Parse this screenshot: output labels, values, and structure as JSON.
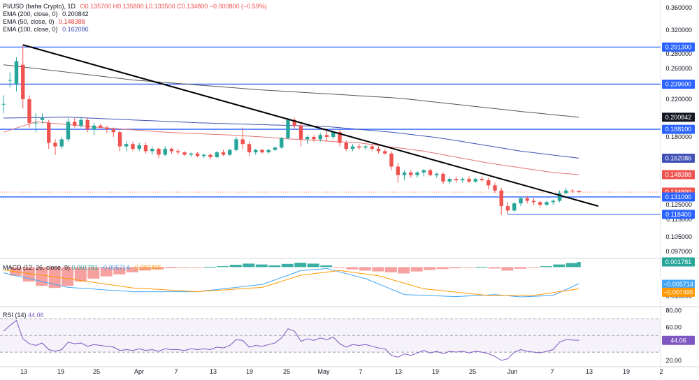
{
  "legend": {
    "symbol": "PI/USD (baha Crypto), 1D",
    "ohlc": "O0.135700 H0.135800 L0.133500 C0.134800 −0.000800 (−0.59%)",
    "ema200_label": "EMA (200, close, 0)",
    "ema200_value": "0.200842",
    "ema50_label": "EMA (50, close, 0)",
    "ema50_value": "0.148388",
    "ema100_label": "EMA (100, close, 0)",
    "ema100_value": "0.162086"
  },
  "macd_legend": {
    "label": "MACD (12, 26, close, 9)",
    "v1": "0.001781",
    "v2": "−0.005714",
    "v3": "−0.007495"
  },
  "rsi_legend": {
    "label": "RSI (14)",
    "value": "44.06"
  },
  "colors": {
    "up": "#26a69a",
    "down": "#ef5350",
    "ema200": "#555555",
    "ema50": "#e57373",
    "ema100": "#3f51b5",
    "level": "#2962ff",
    "trendline": "#000000",
    "macd_line": "#42a5f5",
    "signal_line": "#ff9800",
    "rsi": "#7e57c2"
  },
  "chart_data": [
    {
      "type": "candlestick",
      "title": "PI/USD (baha Crypto), 1D",
      "x_tick_labels": [
        "13",
        "19",
        "25",
        "Apr",
        "7",
        "13",
        "19",
        "25",
        "May",
        "7",
        "13",
        "19",
        "25",
        "Jun",
        "7",
        "13",
        "19",
        "2"
      ],
      "y_tick_labels": [
        "0.360000",
        "0.320000",
        "0.280000",
        "0.260000",
        "0.220000",
        "0.180000",
        "0.150000",
        "0.125000",
        "0.115000",
        "0.105000",
        "0.097000"
      ],
      "ylim": [
        0.09,
        0.37
      ],
      "ohlc": [
        [
          0.215,
          0.225,
          0.205,
          0.215
        ],
        [
          0.245,
          0.255,
          0.235,
          0.245
        ],
        [
          0.24,
          0.275,
          0.23,
          0.27
        ],
        [
          0.265,
          0.295,
          0.21,
          0.22
        ],
        [
          0.22,
          0.225,
          0.19,
          0.195
        ],
        [
          0.195,
          0.205,
          0.185,
          0.195
        ],
        [
          0.198,
          0.205,
          0.194,
          0.2
        ],
        [
          0.195,
          0.198,
          0.17,
          0.175
        ],
        [
          0.175,
          0.178,
          0.165,
          0.172
        ],
        [
          0.172,
          0.18,
          0.17,
          0.178
        ],
        [
          0.178,
          0.2,
          0.176,
          0.196
        ],
        [
          0.196,
          0.2,
          0.19,
          0.192
        ],
        [
          0.192,
          0.2,
          0.19,
          0.198
        ],
        [
          0.198,
          0.2,
          0.185,
          0.188
        ],
        [
          0.188,
          0.195,
          0.182,
          0.192
        ],
        [
          0.192,
          0.194,
          0.188,
          0.19
        ],
        [
          0.19,
          0.192,
          0.184,
          0.188
        ],
        [
          0.188,
          0.19,
          0.18,
          0.185
        ],
        [
          0.185,
          0.187,
          0.168,
          0.172
        ],
        [
          0.172,
          0.176,
          0.168,
          0.174
        ],
        [
          0.174,
          0.176,
          0.168,
          0.17
        ],
        [
          0.17,
          0.175,
          0.168,
          0.173
        ],
        [
          0.173,
          0.175,
          0.166,
          0.168
        ],
        [
          0.168,
          0.172,
          0.165,
          0.17
        ],
        [
          0.17,
          0.171,
          0.162,
          0.165
        ],
        [
          0.165,
          0.172,
          0.164,
          0.17
        ],
        [
          0.17,
          0.171,
          0.166,
          0.168
        ],
        [
          0.168,
          0.17,
          0.165,
          0.167
        ],
        [
          0.167,
          0.168,
          0.164,
          0.165
        ],
        [
          0.165,
          0.167,
          0.163,
          0.166
        ],
        [
          0.166,
          0.167,
          0.163,
          0.164
        ],
        [
          0.164,
          0.166,
          0.162,
          0.165
        ],
        [
          0.165,
          0.166,
          0.161,
          0.163
        ],
        [
          0.163,
          0.168,
          0.162,
          0.167
        ],
        [
          0.167,
          0.169,
          0.164,
          0.165
        ],
        [
          0.165,
          0.17,
          0.164,
          0.169
        ],
        [
          0.169,
          0.18,
          0.168,
          0.178
        ],
        [
          0.178,
          0.19,
          0.17,
          0.174
        ],
        [
          0.174,
          0.176,
          0.164,
          0.167
        ],
        [
          0.167,
          0.17,
          0.165,
          0.169
        ],
        [
          0.169,
          0.17,
          0.166,
          0.167
        ],
        [
          0.167,
          0.17,
          0.166,
          0.169
        ],
        [
          0.169,
          0.172,
          0.168,
          0.171
        ],
        [
          0.171,
          0.18,
          0.17,
          0.179
        ],
        [
          0.179,
          0.2,
          0.178,
          0.198
        ],
        [
          0.198,
          0.2,
          0.188,
          0.192
        ],
        [
          0.192,
          0.194,
          0.172,
          0.178
        ],
        [
          0.178,
          0.182,
          0.174,
          0.18
        ],
        [
          0.18,
          0.182,
          0.176,
          0.178
        ],
        [
          0.178,
          0.184,
          0.176,
          0.182
        ],
        [
          0.182,
          0.186,
          0.176,
          0.18
        ],
        [
          0.18,
          0.186,
          0.178,
          0.185
        ],
        [
          0.185,
          0.188,
          0.172,
          0.175
        ],
        [
          0.175,
          0.177,
          0.168,
          0.17
        ],
        [
          0.17,
          0.174,
          0.168,
          0.172
        ],
        [
          0.172,
          0.174,
          0.169,
          0.171
        ],
        [
          0.171,
          0.173,
          0.169,
          0.172
        ],
        [
          0.172,
          0.174,
          0.168,
          0.17
        ],
        [
          0.17,
          0.172,
          0.166,
          0.168
        ],
        [
          0.168,
          0.17,
          0.165,
          0.166
        ],
        [
          0.166,
          0.168,
          0.152,
          0.155
        ],
        [
          0.155,
          0.158,
          0.142,
          0.148
        ],
        [
          0.148,
          0.152,
          0.144,
          0.15
        ],
        [
          0.15,
          0.152,
          0.146,
          0.148
        ],
        [
          0.148,
          0.151,
          0.146,
          0.15
        ],
        [
          0.15,
          0.153,
          0.147,
          0.152
        ],
        [
          0.152,
          0.153,
          0.147,
          0.148
        ],
        [
          0.148,
          0.15,
          0.146,
          0.149
        ],
        [
          0.149,
          0.15,
          0.141,
          0.143
        ],
        [
          0.143,
          0.146,
          0.141,
          0.145
        ],
        [
          0.145,
          0.147,
          0.142,
          0.144
        ],
        [
          0.144,
          0.146,
          0.142,
          0.145
        ],
        [
          0.145,
          0.147,
          0.142,
          0.143
        ],
        [
          0.143,
          0.146,
          0.142,
          0.145
        ],
        [
          0.145,
          0.147,
          0.143,
          0.144
        ],
        [
          0.144,
          0.146,
          0.137,
          0.14
        ],
        [
          0.14,
          0.142,
          0.134,
          0.136
        ],
        [
          0.136,
          0.138,
          0.118,
          0.124
        ],
        [
          0.124,
          0.127,
          0.119,
          0.121
        ],
        [
          0.121,
          0.127,
          0.12,
          0.126
        ],
        [
          0.126,
          0.131,
          0.124,
          0.13
        ],
        [
          0.13,
          0.132,
          0.126,
          0.128
        ],
        [
          0.128,
          0.13,
          0.125,
          0.127
        ],
        [
          0.127,
          0.128,
          0.123,
          0.125
        ],
        [
          0.125,
          0.128,
          0.124,
          0.127
        ],
        [
          0.127,
          0.129,
          0.125,
          0.128
        ],
        [
          0.128,
          0.136,
          0.127,
          0.134
        ],
        [
          0.134,
          0.138,
          0.133,
          0.136
        ],
        [
          0.136,
          0.137,
          0.134,
          0.1357
        ],
        [
          0.1357,
          0.1358,
          0.1335,
          0.1348
        ]
      ],
      "series": [
        {
          "name": "EMA (200, close, 0)",
          "anchors": [
            [
              0,
              0.265
            ],
            [
              20,
              0.245
            ],
            [
              40,
              0.232
            ],
            [
              60,
              0.222
            ],
            [
              80,
              0.207
            ],
            [
              89,
              0.200842
            ]
          ]
        },
        {
          "name": "EMA (50, close, 0)",
          "anchors": [
            [
              0,
              0.185
            ],
            [
              5,
              0.196
            ],
            [
              15,
              0.19
            ],
            [
              25,
              0.185
            ],
            [
              35,
              0.182
            ],
            [
              45,
              0.178
            ],
            [
              55,
              0.175
            ],
            [
              65,
              0.168
            ],
            [
              75,
              0.158
            ],
            [
              85,
              0.15
            ],
            [
              89,
              0.148388
            ]
          ]
        },
        {
          "name": "EMA (100, close, 0)",
          "anchors": [
            [
              0,
              0.2
            ],
            [
              10,
              0.201
            ],
            [
              20,
              0.198
            ],
            [
              30,
              0.195
            ],
            [
              40,
              0.193
            ],
            [
              50,
              0.191
            ],
            [
              60,
              0.185
            ],
            [
              70,
              0.177
            ],
            [
              80,
              0.168
            ],
            [
              89,
              0.162086
            ]
          ]
        }
      ],
      "levels": [
        0.2913,
        0.2396,
        0.1881,
        0.131,
        0.1184
      ],
      "current_price": 0.1348,
      "price_badges": [
        "0.291300",
        "0.239600",
        "0.200842",
        "0.188100",
        "0.162086",
        "0.148388",
        "0.134800",
        "0.131000",
        "0.118400"
      ],
      "trendline": [
        [
          3,
          0.295
        ],
        [
          92,
          0.124
        ]
      ]
    },
    {
      "type": "bar",
      "title": "MACD (12, 26, close, 9)",
      "y_tick_labels": [
        "0.001781",
        "−0.005714",
        "−0.007495",
        "−0.010000"
      ],
      "ylim": [
        -0.0115,
        0.0025
      ],
      "histogram": [
        {
          "x": 2,
          "value": -0.003
        },
        {
          "x": 4,
          "value": -0.005
        },
        {
          "x": 6,
          "value": -0.0065
        },
        {
          "x": 8,
          "value": -0.0072
        },
        {
          "x": 10,
          "value": -0.0065
        },
        {
          "x": 12,
          "value": -0.005
        },
        {
          "x": 14,
          "value": -0.004
        },
        {
          "x": 16,
          "value": -0.0032
        },
        {
          "x": 18,
          "value": -0.0025
        },
        {
          "x": 20,
          "value": -0.0018
        },
        {
          "x": 22,
          "value": -0.0012
        },
        {
          "x": 24,
          "value": -0.0008
        },
        {
          "x": 26,
          "value": -0.0004
        },
        {
          "x": 28,
          "value": -0.0002
        },
        {
          "x": 30,
          "value": -0.0001
        },
        {
          "x": 32,
          "value": 0.0001
        },
        {
          "x": 34,
          "value": 0.0003
        },
        {
          "x": 36,
          "value": 0.0008
        },
        {
          "x": 38,
          "value": 0.0012
        },
        {
          "x": 40,
          "value": 0.0009
        },
        {
          "x": 42,
          "value": 0.0006
        },
        {
          "x": 44,
          "value": 0.0011
        },
        {
          "x": 46,
          "value": 0.0015
        },
        {
          "x": 48,
          "value": 0.0012
        },
        {
          "x": 50,
          "value": 0.0006
        },
        {
          "x": 52,
          "value": -0.0002
        },
        {
          "x": 54,
          "value": -0.0008
        },
        {
          "x": 56,
          "value": -0.0012
        },
        {
          "x": 58,
          "value": -0.0015
        },
        {
          "x": 60,
          "value": -0.0018
        },
        {
          "x": 62,
          "value": -0.0022
        },
        {
          "x": 64,
          "value": -0.0015
        },
        {
          "x": 66,
          "value": -0.001
        },
        {
          "x": 68,
          "value": -0.0007
        },
        {
          "x": 70,
          "value": -0.0004
        },
        {
          "x": 72,
          "value": -0.0002
        },
        {
          "x": 74,
          "value": 0.0001
        },
        {
          "x": 76,
          "value": -0.0005
        },
        {
          "x": 78,
          "value": -0.0012
        },
        {
          "x": 80,
          "value": -0.0006
        },
        {
          "x": 82,
          "value": -0.0001
        },
        {
          "x": 84,
          "value": 0.0003
        },
        {
          "x": 86,
          "value": 0.0009
        },
        {
          "x": 88,
          "value": 0.0014
        },
        {
          "x": 89,
          "value": 0.001781
        }
      ],
      "series": [
        {
          "name": "MACD",
          "anchors": [
            [
              0,
              -0.002
            ],
            [
              10,
              -0.007
            ],
            [
              20,
              -0.0085
            ],
            [
              30,
              -0.0085
            ],
            [
              40,
              -0.006
            ],
            [
              46,
              -0.0012
            ],
            [
              50,
              -0.0005
            ],
            [
              56,
              -0.004
            ],
            [
              62,
              -0.0095
            ],
            [
              70,
              -0.0102
            ],
            [
              76,
              -0.0095
            ],
            [
              80,
              -0.0103
            ],
            [
              85,
              -0.0098
            ],
            [
              89,
              -0.005714
            ]
          ]
        },
        {
          "name": "Signal",
          "anchors": [
            [
              0,
              -0.001
            ],
            [
              10,
              -0.004
            ],
            [
              20,
              -0.0072
            ],
            [
              30,
              -0.0085
            ],
            [
              40,
              -0.007
            ],
            [
              46,
              -0.0028
            ],
            [
              52,
              -0.0012
            ],
            [
              58,
              -0.003
            ],
            [
              65,
              -0.0075
            ],
            [
              75,
              -0.0098
            ],
            [
              82,
              -0.0098
            ],
            [
              89,
              -0.007495
            ]
          ]
        }
      ]
    },
    {
      "type": "line",
      "title": "RSI (14)",
      "y_tick_labels": [
        "80.00",
        "60.00",
        "44.06",
        "20.00"
      ],
      "ylim": [
        15,
        82
      ],
      "band": [
        30,
        70
      ],
      "midline": 50,
      "series": [
        {
          "name": "RSI (14)",
          "values": [
            55,
            62,
            68,
            46,
            40,
            38,
            41,
            33,
            31,
            33,
            42,
            40,
            41,
            37,
            39,
            38,
            37,
            36,
            32,
            33,
            32,
            34,
            32,
            33,
            31,
            34,
            33,
            33,
            32,
            34,
            33,
            34,
            33,
            36,
            35,
            38,
            45,
            44,
            36,
            38,
            37,
            39,
            41,
            47,
            58,
            55,
            43,
            46,
            44,
            47,
            45,
            48,
            40,
            36,
            39,
            38,
            39,
            37,
            35,
            34,
            26,
            24,
            28,
            26,
            29,
            32,
            29,
            31,
            28,
            31,
            30,
            31,
            29,
            31,
            30,
            28,
            25,
            20,
            22,
            30,
            33,
            31,
            30,
            29,
            31,
            33,
            42,
            45,
            44.5,
            44.06
          ]
        }
      ]
    }
  ]
}
